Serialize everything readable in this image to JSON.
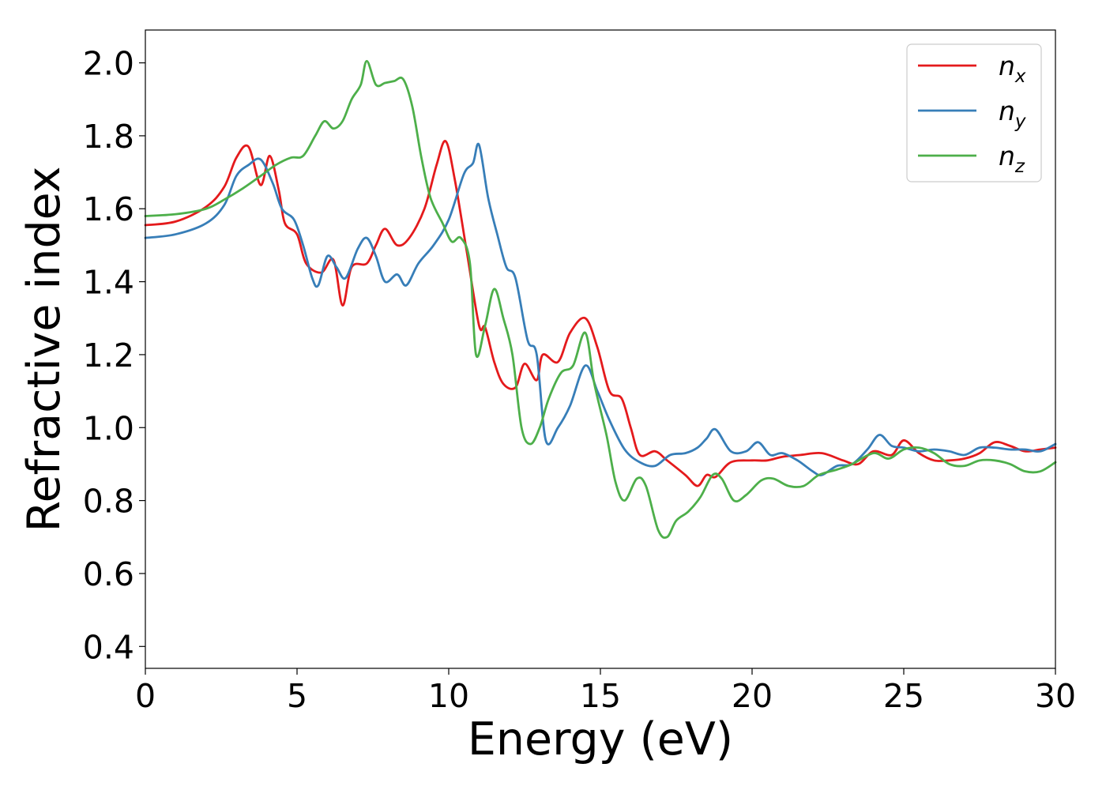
{
  "chart_data": {
    "type": "line",
    "xlabel": "Energy (eV)",
    "ylabel": "Refractive index",
    "xlim": [
      0,
      30
    ],
    "ylim": [
      0.34,
      2.09
    ],
    "xticks": [
      0,
      5,
      10,
      15,
      20,
      25,
      30
    ],
    "yticks": [
      0.4,
      0.6,
      0.8,
      1.0,
      1.2,
      1.4,
      1.6,
      1.8,
      2.0
    ],
    "xtick_labels": [
      "0",
      "5",
      "10",
      "15",
      "20",
      "25",
      "30"
    ],
    "ytick_labels": [
      "0.4",
      "0.6",
      "0.8",
      "1.0",
      "1.2",
      "1.4",
      "1.6",
      "1.8",
      "2.0"
    ],
    "grid": false,
    "legend_position": "top-right",
    "series": [
      {
        "name": "n_x",
        "legend_base": "n",
        "legend_sub": "x",
        "color": "#e41a1c",
        "points": [
          [
            0,
            1.555
          ],
          [
            1,
            1.565
          ],
          [
            2,
            1.605
          ],
          [
            2.6,
            1.66
          ],
          [
            3.0,
            1.74
          ],
          [
            3.4,
            1.77
          ],
          [
            3.8,
            1.665
          ],
          [
            4.1,
            1.745
          ],
          [
            4.4,
            1.65
          ],
          [
            4.6,
            1.56
          ],
          [
            5.0,
            1.53
          ],
          [
            5.3,
            1.45
          ],
          [
            5.8,
            1.425
          ],
          [
            6.2,
            1.46
          ],
          [
            6.5,
            1.335
          ],
          [
            6.8,
            1.44
          ],
          [
            7.3,
            1.45
          ],
          [
            7.6,
            1.5
          ],
          [
            7.9,
            1.545
          ],
          [
            8.3,
            1.5
          ],
          [
            8.7,
            1.52
          ],
          [
            9.2,
            1.6
          ],
          [
            9.6,
            1.72
          ],
          [
            9.9,
            1.785
          ],
          [
            10.2,
            1.68
          ],
          [
            10.6,
            1.48
          ],
          [
            11.0,
            1.28
          ],
          [
            11.2,
            1.275
          ],
          [
            11.5,
            1.18
          ],
          [
            11.8,
            1.12
          ],
          [
            12.2,
            1.11
          ],
          [
            12.5,
            1.175
          ],
          [
            12.9,
            1.13
          ],
          [
            13.1,
            1.2
          ],
          [
            13.6,
            1.18
          ],
          [
            14.0,
            1.26
          ],
          [
            14.5,
            1.3
          ],
          [
            14.9,
            1.22
          ],
          [
            15.3,
            1.1
          ],
          [
            15.7,
            1.08
          ],
          [
            16.0,
            1.0
          ],
          [
            16.3,
            0.925
          ],
          [
            16.8,
            0.935
          ],
          [
            17.2,
            0.91
          ],
          [
            17.8,
            0.87
          ],
          [
            18.2,
            0.84
          ],
          [
            18.5,
            0.87
          ],
          [
            18.8,
            0.865
          ],
          [
            19.3,
            0.905
          ],
          [
            20,
            0.91
          ],
          [
            20.5,
            0.91
          ],
          [
            21,
            0.92
          ],
          [
            21.6,
            0.925
          ],
          [
            22.3,
            0.93
          ],
          [
            23,
            0.91
          ],
          [
            23.5,
            0.9
          ],
          [
            24,
            0.935
          ],
          [
            24.6,
            0.925
          ],
          [
            25,
            0.965
          ],
          [
            25.5,
            0.93
          ],
          [
            26,
            0.91
          ],
          [
            26.5,
            0.91
          ],
          [
            27,
            0.915
          ],
          [
            27.5,
            0.93
          ],
          [
            28,
            0.96
          ],
          [
            28.5,
            0.95
          ],
          [
            29,
            0.935
          ],
          [
            29.5,
            0.94
          ],
          [
            30,
            0.945
          ]
        ]
      },
      {
        "name": "n_y",
        "legend_base": "n",
        "legend_sub": "y",
        "color": "#377eb8",
        "points": [
          [
            0,
            1.52
          ],
          [
            1,
            1.53
          ],
          [
            2,
            1.56
          ],
          [
            2.6,
            1.61
          ],
          [
            3.0,
            1.69
          ],
          [
            3.4,
            1.72
          ],
          [
            3.8,
            1.735
          ],
          [
            4.2,
            1.67
          ],
          [
            4.5,
            1.6
          ],
          [
            4.9,
            1.57
          ],
          [
            5.2,
            1.5
          ],
          [
            5.5,
            1.41
          ],
          [
            5.7,
            1.39
          ],
          [
            6.0,
            1.47
          ],
          [
            6.3,
            1.44
          ],
          [
            6.6,
            1.41
          ],
          [
            7.0,
            1.49
          ],
          [
            7.3,
            1.52
          ],
          [
            7.6,
            1.47
          ],
          [
            7.9,
            1.4
          ],
          [
            8.3,
            1.42
          ],
          [
            8.6,
            1.39
          ],
          [
            9.0,
            1.45
          ],
          [
            9.5,
            1.5
          ],
          [
            10.0,
            1.57
          ],
          [
            10.5,
            1.695
          ],
          [
            10.8,
            1.725
          ],
          [
            11.0,
            1.775
          ],
          [
            11.3,
            1.63
          ],
          [
            11.6,
            1.53
          ],
          [
            11.9,
            1.44
          ],
          [
            12.2,
            1.41
          ],
          [
            12.6,
            1.24
          ],
          [
            12.9,
            1.2
          ],
          [
            13.2,
            0.965
          ],
          [
            13.6,
            1.0
          ],
          [
            14.0,
            1.06
          ],
          [
            14.5,
            1.17
          ],
          [
            14.9,
            1.1
          ],
          [
            15.3,
            1.02
          ],
          [
            15.8,
            0.94
          ],
          [
            16.3,
            0.905
          ],
          [
            16.8,
            0.895
          ],
          [
            17.3,
            0.925
          ],
          [
            17.8,
            0.93
          ],
          [
            18.2,
            0.945
          ],
          [
            18.5,
            0.97
          ],
          [
            18.8,
            0.995
          ],
          [
            19.3,
            0.935
          ],
          [
            19.8,
            0.935
          ],
          [
            20.2,
            0.96
          ],
          [
            20.6,
            0.925
          ],
          [
            21.0,
            0.93
          ],
          [
            21.5,
            0.91
          ],
          [
            22.0,
            0.88
          ],
          [
            22.3,
            0.87
          ],
          [
            22.8,
            0.895
          ],
          [
            23.3,
            0.9
          ],
          [
            23.8,
            0.94
          ],
          [
            24.2,
            0.98
          ],
          [
            24.6,
            0.95
          ],
          [
            25,
            0.945
          ],
          [
            25.5,
            0.935
          ],
          [
            26,
            0.94
          ],
          [
            26.5,
            0.935
          ],
          [
            27,
            0.925
          ],
          [
            27.5,
            0.945
          ],
          [
            28,
            0.945
          ],
          [
            28.5,
            0.94
          ],
          [
            29,
            0.94
          ],
          [
            29.5,
            0.935
          ],
          [
            30,
            0.955
          ]
        ]
      },
      {
        "name": "n_z",
        "legend_base": "n",
        "legend_sub": "z",
        "color": "#4daf4a",
        "points": [
          [
            0,
            1.58
          ],
          [
            1,
            1.585
          ],
          [
            2,
            1.6
          ],
          [
            2.6,
            1.625
          ],
          [
            3.2,
            1.655
          ],
          [
            3.8,
            1.69
          ],
          [
            4.3,
            1.72
          ],
          [
            4.8,
            1.74
          ],
          [
            5.2,
            1.745
          ],
          [
            5.6,
            1.8
          ],
          [
            5.9,
            1.84
          ],
          [
            6.2,
            1.82
          ],
          [
            6.5,
            1.84
          ],
          [
            6.8,
            1.9
          ],
          [
            7.1,
            1.94
          ],
          [
            7.3,
            2.005
          ],
          [
            7.6,
            1.94
          ],
          [
            7.9,
            1.945
          ],
          [
            8.2,
            1.95
          ],
          [
            8.5,
            1.955
          ],
          [
            8.8,
            1.88
          ],
          [
            9.1,
            1.74
          ],
          [
            9.4,
            1.63
          ],
          [
            9.8,
            1.56
          ],
          [
            10.1,
            1.51
          ],
          [
            10.4,
            1.52
          ],
          [
            10.7,
            1.45
          ],
          [
            10.9,
            1.2
          ],
          [
            11.2,
            1.28
          ],
          [
            11.5,
            1.38
          ],
          [
            11.8,
            1.3
          ],
          [
            12.1,
            1.2
          ],
          [
            12.4,
            1.0
          ],
          [
            12.7,
            0.955
          ],
          [
            13.0,
            1.0
          ],
          [
            13.3,
            1.08
          ],
          [
            13.7,
            1.15
          ],
          [
            14.1,
            1.17
          ],
          [
            14.5,
            1.26
          ],
          [
            14.8,
            1.12
          ],
          [
            15.2,
            0.98
          ],
          [
            15.5,
            0.85
          ],
          [
            15.8,
            0.8
          ],
          [
            16.2,
            0.86
          ],
          [
            16.5,
            0.84
          ],
          [
            16.9,
            0.72
          ],
          [
            17.2,
            0.7
          ],
          [
            17.5,
            0.745
          ],
          [
            17.9,
            0.77
          ],
          [
            18.3,
            0.81
          ],
          [
            18.7,
            0.87
          ],
          [
            19.0,
            0.86
          ],
          [
            19.4,
            0.8
          ],
          [
            19.8,
            0.815
          ],
          [
            20.3,
            0.855
          ],
          [
            20.7,
            0.86
          ],
          [
            21.2,
            0.84
          ],
          [
            21.7,
            0.84
          ],
          [
            22.2,
            0.87
          ],
          [
            22.8,
            0.885
          ],
          [
            23.3,
            0.9
          ],
          [
            24,
            0.93
          ],
          [
            24.5,
            0.915
          ],
          [
            25,
            0.94
          ],
          [
            25.5,
            0.945
          ],
          [
            26,
            0.93
          ],
          [
            26.5,
            0.9
          ],
          [
            27,
            0.895
          ],
          [
            27.5,
            0.91
          ],
          [
            28,
            0.91
          ],
          [
            28.5,
            0.9
          ],
          [
            29,
            0.88
          ],
          [
            29.5,
            0.88
          ],
          [
            30,
            0.905
          ]
        ]
      }
    ]
  }
}
